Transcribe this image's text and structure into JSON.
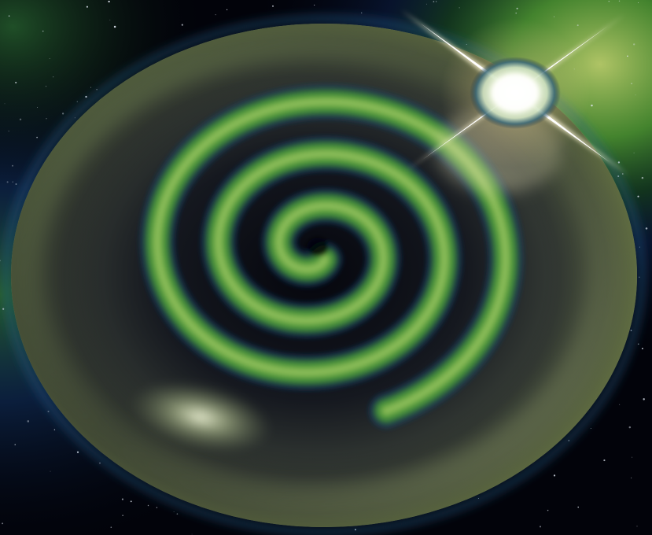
{
  "scene": {
    "subject": "spiral-galaxy-disc",
    "colors": {
      "space": "#02030a",
      "glow_green": "#3f8f3a",
      "glow_blue": "#1d3f86",
      "disc_rim": "#a7bb78",
      "disc_body": "#3f4a3f",
      "spiral_green": "#52a340",
      "highlight": "#f4f8dc",
      "flare": "#f5ecc8"
    }
  }
}
